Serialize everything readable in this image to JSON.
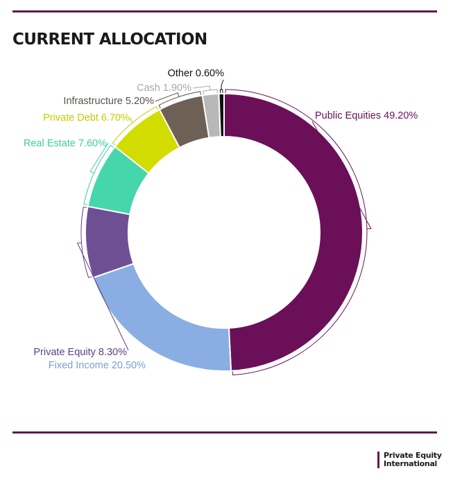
{
  "title": "CURRENT ALLOCATION",
  "brand": {
    "line1": "Private Equity",
    "line2": "International"
  },
  "chart_data": {
    "type": "pie",
    "variant": "donut",
    "title": "CURRENT ALLOCATION",
    "unit": "%",
    "slices": [
      {
        "label": "Public Equities 49.20%",
        "name": "Public Equities",
        "value": 49.2,
        "color": "#6b0f58",
        "label_color": "#6b0f58"
      },
      {
        "label": "Fixed Income 20.50%",
        "name": "Fixed Income",
        "value": 20.5,
        "color": "#8aaee3",
        "label_color": "#7a9ed6"
      },
      {
        "label": "Private Equity 8.30%",
        "name": "Private Equity",
        "value": 8.3,
        "color": "#6e4f93",
        "label_color": "#5c4180"
      },
      {
        "label": "Real Estate 7.60%",
        "name": "Real Estate",
        "value": 7.6,
        "color": "#46d6ab",
        "label_color": "#3ccf9c"
      },
      {
        "label": "Private Debt 6.70%",
        "name": "Private Debt",
        "value": 6.7,
        "color": "#d2dc00",
        "label_color": "#c2cc00"
      },
      {
        "label": "Infrastructure 5.20%",
        "name": "Infrastructure",
        "value": 5.2,
        "color": "#6e6055",
        "label_color": "#5a5048"
      },
      {
        "label": "Cash 1.90%",
        "name": "Cash",
        "value": 1.9,
        "color": "#b8b8b8",
        "label_color": "#a8a8a8"
      },
      {
        "label": "Other 0.60%",
        "name": "Other",
        "value": 0.6,
        "color": "#111111",
        "label_color": "#111111"
      }
    ]
  }
}
